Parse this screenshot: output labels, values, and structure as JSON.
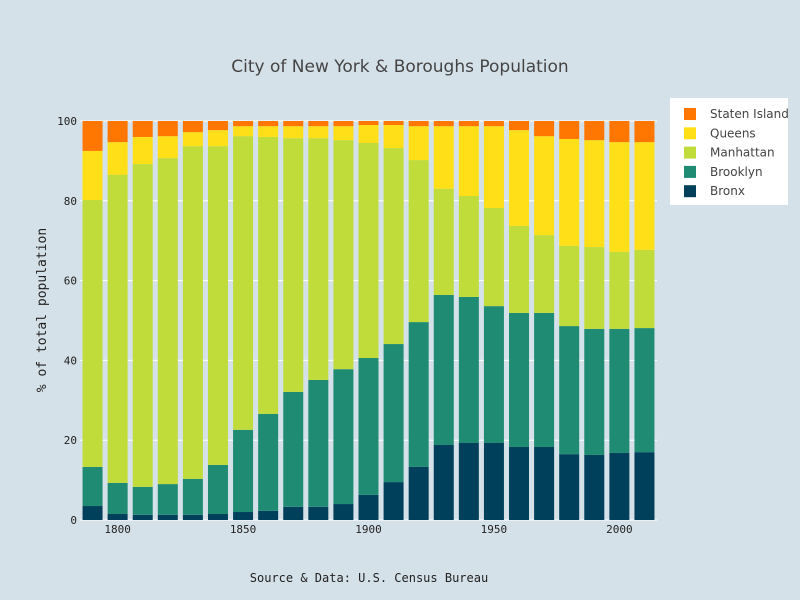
{
  "chart_data": {
    "type": "bar",
    "stacked": true,
    "title": "City of New York & Boroughs Population",
    "xlabel": "",
    "ylabel": "% of total population",
    "annotation": "Source & Data: U.S. Census Bureau",
    "ylim": [
      0,
      100
    ],
    "xlim": [
      1785,
      2015
    ],
    "yticks": [
      0,
      20,
      40,
      60,
      80,
      100
    ],
    "xticks": [
      1800,
      1850,
      1900,
      1950,
      2000
    ],
    "grid": true,
    "legend_position": "top-right",
    "x": [
      1790,
      1800,
      1810,
      1820,
      1830,
      1840,
      1850,
      1860,
      1870,
      1880,
      1890,
      1900,
      1910,
      1920,
      1930,
      1940,
      1950,
      1960,
      1970,
      1980,
      1990,
      2000,
      2010
    ],
    "series": [
      {
        "name": "Bronx",
        "color": "#00405b",
        "values": [
          3.5,
          1.5,
          1.3,
          1.3,
          1.3,
          1.5,
          2.0,
          2.3,
          3.3,
          3.3,
          4.0,
          6.3,
          9.5,
          13.3,
          18.8,
          19.3,
          19.3,
          18.3,
          18.3,
          16.5,
          16.3,
          16.8,
          17.0
        ]
      },
      {
        "name": "Brooklyn",
        "color": "#1f8b72",
        "values": [
          9.8,
          7.8,
          7.0,
          7.7,
          9.0,
          12.3,
          20.6,
          24.3,
          28.8,
          31.8,
          33.8,
          34.3,
          34.6,
          36.3,
          37.6,
          36.6,
          34.3,
          33.6,
          33.6,
          32.1,
          31.6,
          31.1,
          31.1
        ]
      },
      {
        "name": "Manhattan",
        "color": "#c0dc3a",
        "values": [
          66.9,
          77.2,
          80.9,
          81.7,
          83.4,
          79.9,
          73.6,
          69.4,
          63.6,
          60.6,
          57.4,
          53.9,
          49.1,
          40.6,
          26.6,
          25.3,
          24.6,
          21.8,
          19.5,
          20.1,
          20.5,
          19.3,
          19.6
        ]
      },
      {
        "name": "Queens",
        "color": "#ffdf17",
        "values": [
          12.3,
          8.2,
          6.8,
          5.5,
          3.5,
          4.0,
          2.5,
          2.7,
          3.0,
          3.0,
          3.5,
          4.5,
          5.8,
          8.5,
          15.7,
          17.5,
          20.5,
          24.0,
          24.8,
          26.8,
          26.8,
          27.5,
          27.0
        ]
      },
      {
        "name": "Staten Island",
        "color": "#ff7600",
        "values": [
          7.5,
          5.3,
          4.0,
          3.8,
          2.8,
          2.3,
          1.3,
          1.3,
          1.3,
          1.3,
          1.3,
          1.0,
          1.0,
          1.3,
          1.3,
          1.3,
          1.3,
          2.3,
          3.8,
          4.5,
          4.8,
          5.3,
          5.3
        ]
      }
    ],
    "legend_order": [
      "Staten Island",
      "Queens",
      "Manhattan",
      "Brooklyn",
      "Bronx"
    ]
  }
}
